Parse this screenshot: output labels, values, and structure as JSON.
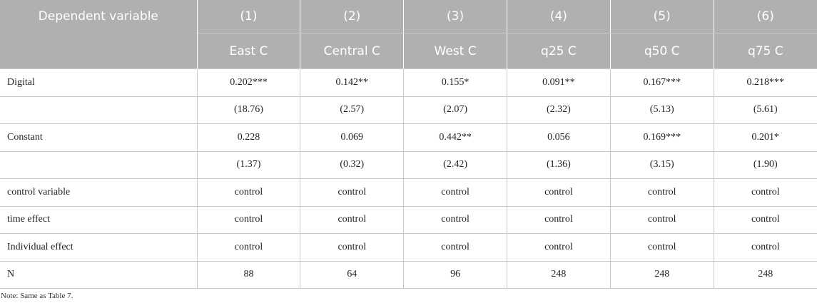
{
  "table": {
    "header_top": [
      "Dependent variable",
      "(1)",
      "(2)",
      "(3)",
      "(4)",
      "(5)",
      "(6)"
    ],
    "header_sub": [
      "East C",
      "Central C",
      "West C",
      "q25 C",
      "q50 C",
      "q75 C"
    ],
    "rows": [
      {
        "label": "Digital",
        "cells": [
          "0.202***",
          "0.142**",
          "0.155*",
          "0.091**",
          "0.167***",
          "0.218***"
        ]
      },
      {
        "label": "",
        "cells": [
          "(18.76)",
          "(2.57)",
          "(2.07)",
          "(2.32)",
          "(5.13)",
          "(5.61)"
        ]
      },
      {
        "label": "Constant",
        "cells": [
          "0.228",
          "0.069",
          "0.442**",
          "0.056",
          "0.169***",
          "0.201*"
        ]
      },
      {
        "label": "",
        "cells": [
          "(1.37)",
          "(0.32)",
          "(2.42)",
          "(1.36)",
          "(3.15)",
          "(1.90)"
        ]
      },
      {
        "label": "control variable",
        "cells": [
          "control",
          "control",
          "control",
          "control",
          "control",
          "control"
        ]
      },
      {
        "label": "time effect",
        "cells": [
          "control",
          "control",
          "control",
          "control",
          "control",
          "control"
        ]
      },
      {
        "label": "Individual effect",
        "cells": [
          "control",
          "control",
          "control",
          "control",
          "control",
          "control"
        ]
      },
      {
        "label": "N",
        "cells": [
          "88",
          "64",
          "96",
          "248",
          "248",
          "248"
        ]
      }
    ]
  },
  "note": "Note: Same as Table 7."
}
